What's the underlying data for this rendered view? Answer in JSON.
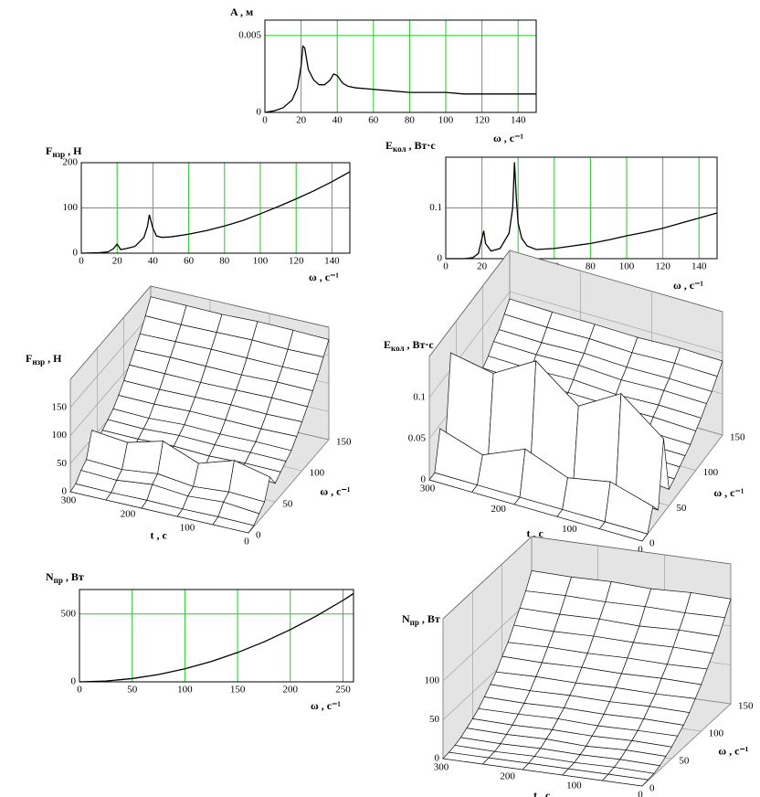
{
  "chart_data": [
    {
      "type": "line",
      "y_label": "A , м",
      "x_label": "ω , c⁻¹",
      "color": "#000000",
      "grid": true,
      "x": [
        0,
        5,
        10,
        15,
        18,
        20,
        21,
        22,
        24,
        27,
        30,
        33,
        36,
        38,
        40,
        43,
        46,
        50,
        60,
        70,
        80,
        90,
        100,
        110,
        120,
        130,
        140,
        150
      ],
      "values": [
        0,
        0.0001,
        0.0003,
        0.0008,
        0.0016,
        0.003,
        0.0043,
        0.0042,
        0.0028,
        0.0021,
        0.0018,
        0.0018,
        0.0021,
        0.0025,
        0.0024,
        0.0019,
        0.0017,
        0.0016,
        0.0015,
        0.0014,
        0.0013,
        0.0013,
        0.0013,
        0.0012,
        0.0012,
        0.0012,
        0.0012,
        0.0012
      ],
      "xlim": [
        0,
        150
      ],
      "xticks": [
        0,
        20,
        40,
        60,
        80,
        100,
        120,
        140
      ],
      "ylim": [
        0,
        0.006
      ],
      "yticks": [
        0,
        0.005
      ]
    },
    {
      "type": "line",
      "y_label": {
        "base": "F",
        "sub": "нзр",
        "unit": " , Н"
      },
      "x_label": "ω , c⁻¹",
      "color": "#000000",
      "grid": true,
      "x": [
        0,
        10,
        15,
        18,
        20,
        22,
        25,
        30,
        35,
        37,
        38,
        40,
        42,
        45,
        50,
        60,
        70,
        80,
        90,
        100,
        110,
        120,
        130,
        140,
        150
      ],
      "values": [
        0,
        1,
        3,
        10,
        20,
        8,
        10,
        15,
        35,
        60,
        85,
        55,
        38,
        35,
        36,
        42,
        50,
        60,
        72,
        87,
        103,
        120,
        138,
        158,
        180
      ],
      "xlim": [
        0,
        150
      ],
      "xticks": [
        0,
        20,
        40,
        60,
        80,
        100,
        120,
        140
      ],
      "ylim": [
        0,
        200
      ],
      "yticks": [
        0,
        100,
        200
      ]
    },
    {
      "type": "line",
      "y_label": {
        "base": "E",
        "sub": "кол",
        "unit": " , Вт·с"
      },
      "x_label": "ω , c⁻¹",
      "color": "#000000",
      "grid": true,
      "x": [
        0,
        10,
        15,
        18,
        20,
        21,
        22,
        25,
        30,
        35,
        37,
        38,
        39,
        40,
        42,
        45,
        50,
        60,
        70,
        80,
        90,
        100,
        110,
        120,
        130,
        140,
        150
      ],
      "values": [
        0,
        0,
        0.002,
        0.01,
        0.04,
        0.055,
        0.03,
        0.015,
        0.02,
        0.05,
        0.1,
        0.19,
        0.12,
        0.07,
        0.04,
        0.025,
        0.018,
        0.02,
        0.025,
        0.03,
        0.037,
        0.045,
        0.052,
        0.06,
        0.07,
        0.08,
        0.09
      ],
      "xlim": [
        0,
        150
      ],
      "xticks": [
        0,
        20,
        40,
        60,
        80,
        100,
        120,
        140
      ],
      "ylim": [
        0,
        0.2
      ],
      "yticks": [
        0,
        0.1
      ]
    },
    {
      "type": "surface3d",
      "z_label": {
        "base": "F",
        "sub": "нзр",
        "unit": " , Н"
      },
      "t_label": "t , c",
      "omega_label": "ω , c⁻¹",
      "t": [
        0,
        60,
        120,
        180,
        240,
        300
      ],
      "omega": [
        0,
        10,
        20,
        30,
        40,
        50,
        60,
        70,
        80,
        90,
        100,
        110,
        120,
        130,
        140,
        150
      ],
      "z": [
        [
          0,
          2,
          12,
          22,
          55,
          33,
          42,
          50,
          58,
          72,
          87,
          103,
          120,
          138,
          158,
          178
        ],
        [
          0,
          3,
          18,
          25,
          70,
          38,
          43,
          51,
          59,
          71,
          86,
          104,
          121,
          137,
          157,
          180
        ],
        [
          0,
          2,
          14,
          20,
          50,
          30,
          41,
          50,
          58,
          72,
          88,
          103,
          119,
          138,
          159,
          181
        ],
        [
          0,
          3,
          20,
          28,
          75,
          40,
          44,
          52,
          60,
          73,
          87,
          102,
          120,
          139,
          158,
          179
        ],
        [
          0,
          2,
          13,
          21,
          58,
          34,
          42,
          49,
          57,
          71,
          86,
          103,
          121,
          138,
          157,
          180
        ],
        [
          0,
          3,
          16,
          24,
          65,
          36,
          43,
          51,
          59,
          72,
          87,
          104,
          120,
          137,
          158,
          181
        ]
      ],
      "tlim": [
        0,
        300
      ],
      "tticks": [
        0,
        100,
        200,
        300
      ],
      "omegalim": [
        0,
        150
      ],
      "omegaticks": [
        0,
        50,
        100,
        150
      ],
      "zlim": [
        0,
        200
      ],
      "zticks": [
        0,
        50,
        100,
        150
      ]
    },
    {
      "type": "surface3d",
      "z_label": {
        "base": "E",
        "sub": "кол",
        "unit": " , Вт·с"
      },
      "t_label": "t , c",
      "omega_label": "ω , c⁻¹",
      "t": [
        0,
        60,
        120,
        180,
        240,
        300
      ],
      "omega": [
        0,
        10,
        20,
        30,
        40,
        50,
        60,
        70,
        80,
        90,
        100,
        110,
        120,
        130,
        140,
        150
      ],
      "z": [
        [
          0,
          0,
          0.025,
          0.012,
          0.09,
          0.02,
          0.024,
          0.03,
          0.035,
          0.04,
          0.048,
          0.055,
          0.064,
          0.07,
          0.08,
          0.09
        ],
        [
          0,
          0,
          0.04,
          0.015,
          0.13,
          0.025,
          0.026,
          0.031,
          0.036,
          0.041,
          0.05,
          0.056,
          0.065,
          0.071,
          0.081,
          0.091
        ],
        [
          0,
          0,
          0.03,
          0.01,
          0.1,
          0.018,
          0.024,
          0.029,
          0.034,
          0.04,
          0.049,
          0.054,
          0.063,
          0.07,
          0.079,
          0.089
        ],
        [
          0,
          0,
          0.05,
          0.02,
          0.14,
          0.028,
          0.027,
          0.032,
          0.037,
          0.042,
          0.05,
          0.057,
          0.066,
          0.072,
          0.081,
          0.09
        ],
        [
          0,
          0,
          0.028,
          0.012,
          0.11,
          0.022,
          0.025,
          0.03,
          0.035,
          0.04,
          0.048,
          0.055,
          0.064,
          0.07,
          0.08,
          0.09
        ],
        [
          0,
          0,
          0.045,
          0.018,
          0.12,
          0.026,
          0.026,
          0.031,
          0.036,
          0.041,
          0.05,
          0.056,
          0.065,
          0.071,
          0.081,
          0.091
        ]
      ],
      "tlim": [
        0,
        300
      ],
      "tticks": [
        0,
        100,
        200,
        300
      ],
      "omegalim": [
        0,
        150
      ],
      "omegaticks": [
        0,
        50,
        100,
        150
      ],
      "zlim": [
        0,
        0.15
      ],
      "zticks": [
        0,
        0.05,
        0.1
      ]
    },
    {
      "type": "line",
      "y_label": {
        "base": "N",
        "sub": "пр",
        "unit": " , Вт"
      },
      "x_label": "ω , c⁻¹",
      "color": "#000000",
      "grid": true,
      "x": [
        0,
        25,
        50,
        75,
        100,
        125,
        150,
        175,
        200,
        225,
        250,
        260
      ],
      "values": [
        0,
        6,
        24,
        54,
        96,
        150,
        216,
        294,
        384,
        486,
        600,
        650
      ],
      "xlim": [
        0,
        260
      ],
      "xticks": [
        0,
        50,
        100,
        150,
        200,
        250
      ],
      "ylim": [
        0,
        680
      ],
      "yticks": [
        0,
        500
      ]
    },
    {
      "type": "surface3d",
      "z_label": {
        "base": "N",
        "sub": "пр",
        "unit": " , Вт"
      },
      "t_label": "t , c",
      "omega_label": "ω , c⁻¹",
      "t": [
        0,
        60,
        120,
        180,
        240,
        300
      ],
      "omega": [
        0,
        10,
        20,
        30,
        40,
        50,
        60,
        70,
        80,
        90,
        100,
        110,
        120,
        130,
        140,
        150
      ],
      "z": [
        [
          0,
          1,
          2,
          5,
          10,
          15,
          22,
          29,
          38,
          49,
          60,
          73,
          86,
          101,
          118,
          135
        ],
        [
          0,
          1,
          3,
          6,
          11,
          16,
          22,
          30,
          39,
          48,
          61,
          72,
          87,
          102,
          117,
          136
        ],
        [
          0,
          1,
          2,
          5,
          9,
          15,
          21,
          29,
          38,
          49,
          60,
          73,
          86,
          100,
          118,
          134
        ],
        [
          0,
          1,
          3,
          6,
          11,
          16,
          23,
          30,
          39,
          48,
          61,
          72,
          87,
          102,
          117,
          136
        ],
        [
          0,
          1,
          2,
          5,
          10,
          15,
          22,
          29,
          38,
          49,
          60,
          73,
          86,
          101,
          118,
          135
        ],
        [
          0,
          1,
          3,
          6,
          11,
          16,
          22,
          30,
          39,
          48,
          61,
          72,
          87,
          102,
          117,
          136
        ]
      ],
      "tlim": [
        0,
        300
      ],
      "tticks": [
        0,
        100,
        200,
        300
      ],
      "omegalim": [
        0,
        150
      ],
      "omegaticks": [
        0,
        50,
        100,
        150
      ],
      "zlim": [
        0,
        180
      ],
      "zticks": [
        0,
        50,
        100
      ]
    }
  ]
}
